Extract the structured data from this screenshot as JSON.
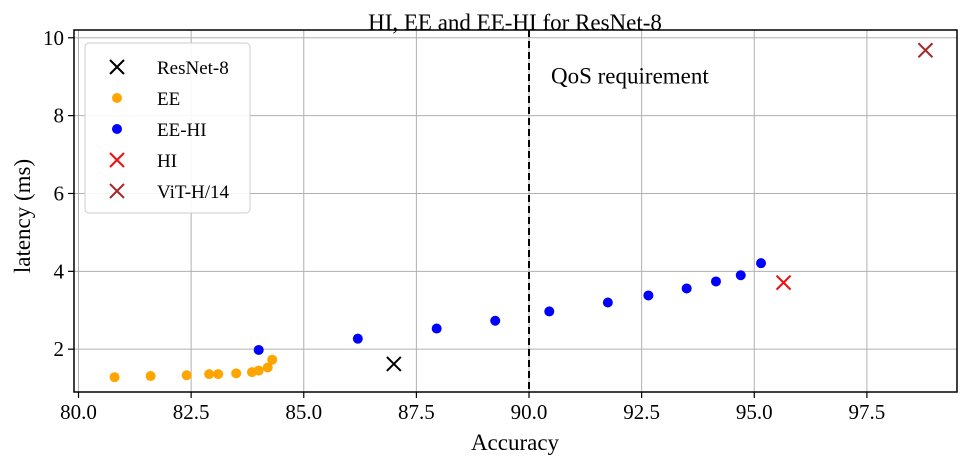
{
  "chart_data": {
    "type": "scatter",
    "title": "HI, EE and EE-HI for ResNet-8",
    "xlabel": "Accuracy",
    "ylabel": "latency (ms)",
    "xlim": [
      79.9,
      99.5
    ],
    "ylim": [
      0.9,
      10.2
    ],
    "x_ticks": [
      80.0,
      82.5,
      85.0,
      87.5,
      90.0,
      92.5,
      95.0,
      97.5
    ],
    "x_tick_labels": [
      "80.0",
      "82.5",
      "85.0",
      "87.5",
      "90.0",
      "92.5",
      "95.0",
      "97.5"
    ],
    "y_ticks": [
      2,
      4,
      6,
      8,
      10
    ],
    "y_tick_labels": [
      "2",
      "4",
      "6",
      "8",
      "10"
    ],
    "grid": true,
    "legend_position": "top-left",
    "annotation": {
      "text": "QoS requirement",
      "x": 90.0,
      "linestyle": "dashed"
    },
    "series": [
      {
        "name": "ResNet-8",
        "marker": "x",
        "color": "#000000",
        "points": [
          [
            87.0,
            1.62
          ]
        ]
      },
      {
        "name": "EE",
        "marker": "o",
        "color": "#ffa500",
        "points": [
          [
            80.8,
            1.28
          ],
          [
            81.6,
            1.31
          ],
          [
            82.4,
            1.33
          ],
          [
            82.9,
            1.36
          ],
          [
            83.1,
            1.36
          ],
          [
            83.5,
            1.38
          ],
          [
            83.85,
            1.41
          ],
          [
            84.0,
            1.45
          ],
          [
            84.2,
            1.53
          ],
          [
            84.3,
            1.73
          ]
        ]
      },
      {
        "name": "EE-HI",
        "marker": "o",
        "color": "#0000ff",
        "points": [
          [
            84.0,
            1.98
          ],
          [
            86.2,
            2.27
          ],
          [
            87.95,
            2.53
          ],
          [
            89.25,
            2.73
          ],
          [
            90.45,
            2.97
          ],
          [
            91.75,
            3.2
          ],
          [
            92.65,
            3.38
          ],
          [
            93.5,
            3.56
          ],
          [
            94.15,
            3.74
          ],
          [
            94.7,
            3.9
          ],
          [
            95.15,
            4.21
          ]
        ]
      },
      {
        "name": "HI",
        "marker": "x",
        "color": "#ee1111",
        "points": [
          [
            95.65,
            3.71
          ]
        ]
      },
      {
        "name": "ViT-H/14",
        "marker": "x",
        "color": "#a52a2a",
        "points": [
          [
            98.8,
            9.68
          ]
        ]
      }
    ]
  }
}
